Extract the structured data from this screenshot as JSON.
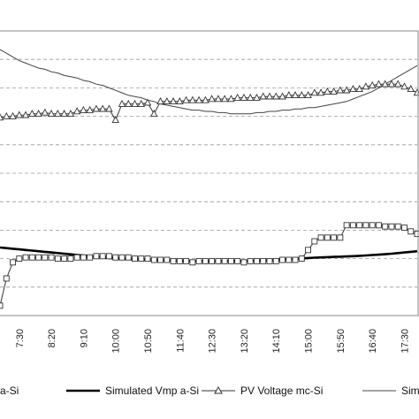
{
  "chart_data": {
    "type": "line",
    "title": "",
    "xlabel": "",
    "ylabel": "",
    "grid": "horizontal dashed",
    "x_tick_labels": [
      "7:30",
      "8:20",
      "9:10",
      "10:00",
      "10:50",
      "11:40",
      "12:30",
      "13:20",
      "14:10",
      "15:00",
      "15:50",
      "16:40",
      "17:30"
    ],
    "x": [
      "7:00",
      "7:10",
      "7:20",
      "7:30",
      "7:40",
      "7:50",
      "8:00",
      "8:10",
      "8:20",
      "8:30",
      "8:40",
      "8:50",
      "9:00",
      "9:10",
      "9:20",
      "9:30",
      "9:40",
      "9:50",
      "10:00",
      "10:10",
      "10:20",
      "10:30",
      "10:40",
      "10:50",
      "11:00",
      "11:10",
      "11:20",
      "11:30",
      "11:40",
      "11:50",
      "12:00",
      "12:10",
      "12:20",
      "12:30",
      "12:40",
      "12:50",
      "13:00",
      "13:10",
      "13:20",
      "13:30",
      "13:40",
      "13:50",
      "14:00",
      "14:10",
      "14:20",
      "14:30",
      "14:40",
      "14:50",
      "15:00",
      "15:10",
      "15:20",
      "15:30",
      "15:40",
      "15:50",
      "16:00",
      "16:10",
      "16:20",
      "16:30",
      "16:40",
      "16:50",
      "17:00",
      "17:10",
      "17:20",
      "17:30",
      "17:40",
      "17:50"
    ],
    "series": [
      {
        "name": "PV Voltage a-Si",
        "legend_label": "e a-Si",
        "color": "#333333",
        "marker": "square",
        "values": [
          8,
          30,
          43,
          46,
          47,
          47,
          47,
          47,
          47,
          46,
          46,
          46,
          47,
          47,
          47,
          48,
          48,
          48,
          47,
          47,
          47,
          46,
          46,
          46,
          45,
          45,
          45,
          44,
          44,
          44,
          43,
          44,
          44,
          44,
          44,
          44,
          44,
          44,
          43,
          44,
          44,
          44,
          44,
          44,
          45,
          45,
          45,
          46,
          53,
          60,
          63,
          63,
          63,
          63,
          73,
          73,
          73,
          73,
          73,
          73,
          72,
          72,
          72,
          71,
          68,
          66
        ]
      },
      {
        "name": "Simulated Vmp a-Si",
        "legend_label": "Simulated Vmp a-Si",
        "color": "#000000",
        "marker": "none",
        "values": [
          55,
          54.5,
          54,
          53.5,
          53,
          52.5,
          52,
          51.5,
          51,
          50.5,
          50,
          49.5,
          49,
          48.5,
          48,
          47.5,
          47,
          46.5,
          46,
          45.8,
          45.6,
          45.4,
          45.2,
          45,
          44.8,
          44.6,
          44.5,
          44.4,
          44.3,
          44.2,
          44.1,
          44,
          44,
          44,
          44,
          44,
          44,
          44.1,
          44.2,
          44.3,
          44.4,
          44.6,
          44.8,
          45,
          45.3,
          45.6,
          45.9,
          46.2,
          46.5,
          46.8,
          47,
          47.2,
          47.4,
          47.6,
          47.8,
          48,
          48.3,
          48.6,
          48.9,
          49.2,
          49.6,
          50,
          50.5,
          51,
          51.5,
          52
        ]
      },
      {
        "name": "PV Voltage mc-Si",
        "legend_label": "PV Voltage mc-Si",
        "color": "#333333",
        "marker": "triangle",
        "values": [
          160,
          161,
          161,
          162,
          162,
          163,
          163,
          164,
          163,
          163,
          163,
          163,
          165,
          166,
          166,
          167,
          167,
          167,
          158,
          171,
          171,
          171,
          171,
          172,
          163,
          173,
          173,
          173,
          173,
          174,
          174,
          174,
          174,
          175,
          175,
          175,
          175,
          176,
          176,
          176,
          176,
          177,
          177,
          177,
          177,
          178,
          178,
          178,
          178,
          180,
          180,
          181,
          181,
          182,
          182,
          183,
          183,
          185,
          186,
          187,
          187,
          187,
          187,
          185,
          183,
          180
        ]
      },
      {
        "name": "Simulated Vmp mc-Si",
        "legend_label": "Simula",
        "color": "#444444",
        "marker": "none",
        "values": [
          215,
          212,
          209,
          206,
          204,
          202,
          200,
          199,
          197,
          196,
          194,
          193,
          192,
          190,
          189,
          187,
          186,
          184,
          182,
          180,
          178,
          177,
          176,
          174,
          173,
          171,
          170,
          169,
          168,
          167,
          166,
          166,
          165,
          165,
          164,
          164,
          163,
          163,
          163,
          163,
          164,
          164,
          165,
          165,
          166,
          166,
          167,
          167,
          168,
          168,
          169,
          170,
          171,
          172,
          173,
          175,
          177,
          179,
          181,
          184,
          187,
          190,
          193,
          196,
          199,
          202
        ]
      }
    ],
    "ylim": [
      0,
      230
    ],
    "legend_position": "bottom"
  }
}
